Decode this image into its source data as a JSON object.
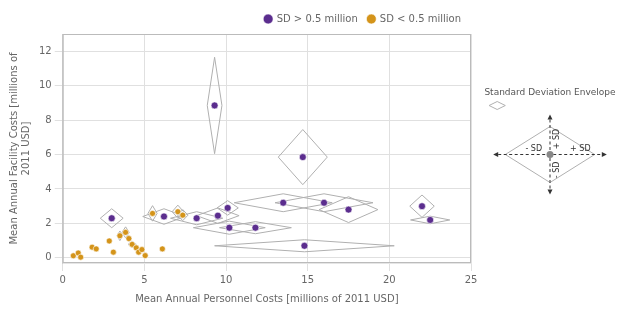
{
  "chart_data": {
    "type": "scatter",
    "xlabel": "Mean Annual Personnel Costs [millions of 2011 USD]",
    "ylabel": "Mean Annual Facility Costs [millions of\n2011 USD]",
    "xlim": [
      0,
      25
    ],
    "ylim": [
      -0.3,
      13.0
    ],
    "xticks": [
      0,
      5,
      10,
      15,
      20,
      25
    ],
    "yticks": [
      0,
      2,
      4,
      6,
      8,
      10,
      12
    ],
    "grid": true,
    "legend": "upper right",
    "annotations": [
      "Standard Deviation Envelope",
      "+ SD",
      "- SD",
      "+ SD",
      "- SD"
    ],
    "series": [
      {
        "name": "SD > 0.5 million",
        "color": "#5b2d8e",
        "x": [
          3.0,
          9.3,
          6.2,
          8.2,
          9.5,
          10.1,
          10.2,
          11.8,
          14.7,
          13.5,
          16.0,
          14.8,
          17.5,
          22.0,
          22.5
        ],
        "values": [
          2.3,
          8.85,
          2.4,
          2.3,
          2.45,
          2.9,
          1.75,
          1.75,
          5.85,
          3.2,
          3.2,
          0.7,
          2.8,
          3.0,
          2.2
        ],
        "sdx": [
          0.7,
          0.45,
          1.3,
          1.6,
          1.3,
          0.65,
          2.2,
          2.2,
          1.5,
          3.0,
          3.0,
          5.5,
          1.8,
          0.75,
          1.2
        ],
        "sdy": [
          0.55,
          2.8,
          0.45,
          0.38,
          0.45,
          0.42,
          0.38,
          0.35,
          1.6,
          0.52,
          0.52,
          0.35,
          0.75,
          0.65,
          0.22
        ]
      },
      {
        "name": "SD < 0.5 million",
        "color": "#d4941a",
        "x": [
          0.65,
          0.95,
          1.1,
          1.8,
          2.05,
          2.85,
          3.1,
          3.5,
          3.85,
          4.05,
          4.25,
          4.5,
          4.65,
          4.85,
          5.05,
          5.5,
          6.1,
          7.05,
          7.35
        ],
        "values": [
          0.12,
          0.28,
          0.04,
          0.62,
          0.52,
          0.98,
          0.33,
          1.28,
          1.48,
          1.12,
          0.78,
          0.58,
          0.33,
          0.48,
          0.13,
          2.58,
          0.52,
          2.68,
          2.48
        ],
        "sdx": [
          null,
          null,
          null,
          null,
          null,
          0.12,
          null,
          0.18,
          0.22,
          0.14,
          0.25,
          null,
          null,
          null,
          null,
          0.28,
          null,
          0.35,
          0.32
        ],
        "sdy": [
          null,
          null,
          null,
          null,
          null,
          0.14,
          null,
          0.28,
          0.32,
          0.18,
          0.18,
          null,
          null,
          null,
          null,
          0.45,
          null,
          0.38,
          0.32
        ]
      }
    ]
  }
}
